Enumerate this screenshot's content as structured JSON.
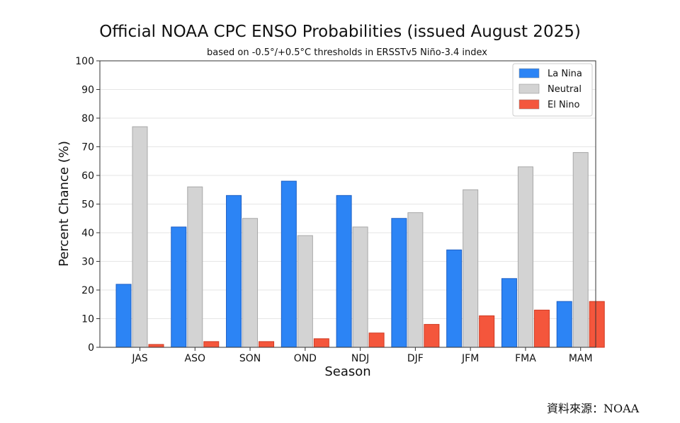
{
  "chart_data": {
    "type": "bar",
    "title": "Official NOAA CPC ENSO Probabilities (issued August 2025)",
    "subtitle": "based on -0.5°/+0.5°C thresholds in ERSSTv5 Niño-3.4 index",
    "xlabel": "Season",
    "ylabel": "Percent Chance (%)",
    "ylim": [
      0,
      100
    ],
    "yticks": [
      0,
      10,
      20,
      30,
      40,
      50,
      60,
      70,
      80,
      90,
      100
    ],
    "categories": [
      "JAS",
      "ASO",
      "SON",
      "OND",
      "NDJ",
      "DJF",
      "JFM",
      "FMA",
      "MAM"
    ],
    "series": [
      {
        "name": "La Nina",
        "color": "#2c84f5",
        "values": [
          22,
          42,
          53,
          58,
          53,
          45,
          34,
          24,
          16
        ]
      },
      {
        "name": "Neutral",
        "color": "#d3d3d3",
        "values": [
          77,
          56,
          45,
          39,
          42,
          47,
          55,
          63,
          68
        ]
      },
      {
        "name": "El Nino",
        "color": "#f4563c",
        "values": [
          1,
          2,
          2,
          3,
          5,
          8,
          11,
          13,
          16
        ]
      }
    ],
    "grid": true,
    "legend_position": "top-right"
  },
  "source_note": "資料來源：NOAA"
}
